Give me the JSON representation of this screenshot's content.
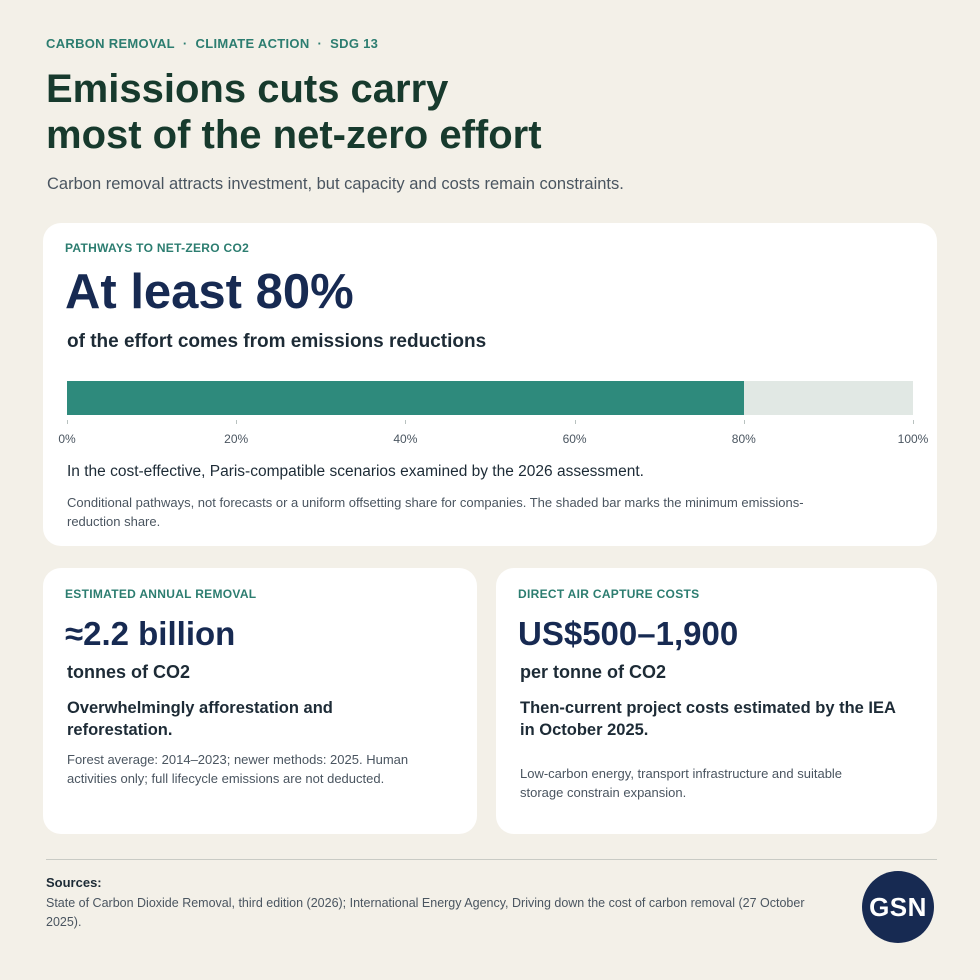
{
  "kicker": {
    "items": [
      "CARBON REMOVAL",
      "CLIMATE ACTION",
      "SDG 13"
    ],
    "separator": "·"
  },
  "headline": {
    "line1": "Emissions cuts carry",
    "line2": "most of the net-zero effort"
  },
  "subhead": "Carbon removal attracts investment, but capacity and costs remain constraints.",
  "main_card": {
    "label": "PATHWAYS TO NET-ZERO CO2",
    "big_value": "At least 80%",
    "unit_text": "of the effort comes from emissions reductions",
    "bar": {
      "value_percent": 80,
      "ticks": [
        "0%",
        "20%",
        "40%",
        "60%",
        "80%",
        "100%"
      ],
      "fill_color": "#2e8a7c",
      "track_color": "#e1e8e4"
    },
    "context": "In the cost-effective, Paris-compatible scenarios examined by the 2026 assessment.",
    "note": "Conditional pathways, not forecasts or a uniform offsetting share for companies. The shaded bar marks the minimum emissions-reduction share."
  },
  "left_card": {
    "label": "ESTIMATED ANNUAL REMOVAL",
    "big_value": "≈2.2 billion",
    "unit_text": "tonnes of CO2",
    "bold_text": "Overwhelmingly afforestation and reforestation.",
    "note": "Forest average: 2014–2023; newer methods: 2025. Human activities only; full lifecycle emissions are not deducted."
  },
  "right_card": {
    "label": "DIRECT AIR CAPTURE COSTS",
    "big_value": "US$500–1,900",
    "unit_text": "per tonne of CO2",
    "bold_text": "Then-current project costs estimated by the IEA in October 2025.",
    "note": "Low-carbon energy, transport infrastructure and suitable storage constrain expansion."
  },
  "sources": {
    "title": "Sources:",
    "text": "State of Carbon Dioxide Removal, third edition (2026); International Energy Agency, Driving down the cost of carbon removal (27 October 2025)."
  },
  "logo": {
    "text": "GSN",
    "color": "#172a52"
  }
}
